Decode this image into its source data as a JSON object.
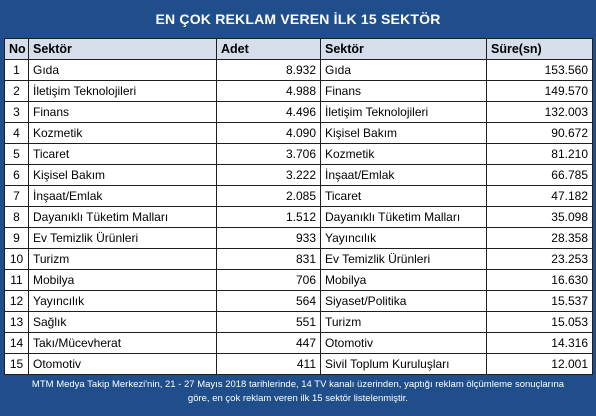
{
  "title": "EN ÇOK REKLAM VEREN İLK 15 SEKTÖR",
  "headers": {
    "no": "No",
    "sector_left": "Sektör",
    "adet": "Adet",
    "sector_right": "Sektör",
    "sure": "Süre(sn)"
  },
  "rows": [
    {
      "no": "1",
      "sector_a": "Gıda",
      "adet": "8.932",
      "sector_b": "Gıda",
      "sure": "153.560"
    },
    {
      "no": "2",
      "sector_a": "İletişim Teknolojileri",
      "adet": "4.988",
      "sector_b": "Finans",
      "sure": "149.570"
    },
    {
      "no": "3",
      "sector_a": "Finans",
      "adet": "4.496",
      "sector_b": "İletişim Teknolojileri",
      "sure": "132.003"
    },
    {
      "no": "4",
      "sector_a": "Kozmetik",
      "adet": "4.090",
      "sector_b": "Kişisel Bakım",
      "sure": "90.672"
    },
    {
      "no": "5",
      "sector_a": "Ticaret",
      "adet": "3.706",
      "sector_b": "Kozmetik",
      "sure": "81.210"
    },
    {
      "no": "6",
      "sector_a": "Kişisel Bakım",
      "adet": "3.222",
      "sector_b": "İnşaat/Emlak",
      "sure": "66.785"
    },
    {
      "no": "7",
      "sector_a": "İnşaat/Emlak",
      "adet": "2.085",
      "sector_b": "Ticaret",
      "sure": "47.182"
    },
    {
      "no": "8",
      "sector_a": "Dayanıklı Tüketim Malları",
      "adet": "1.512",
      "sector_b": "Dayanıklı Tüketim Malları",
      "sure": "35.098"
    },
    {
      "no": "9",
      "sector_a": "Ev Temizlik Ürünleri",
      "adet": "933",
      "sector_b": "Yayıncılık",
      "sure": "28.358"
    },
    {
      "no": "10",
      "sector_a": "Turizm",
      "adet": "831",
      "sector_b": "Ev Temizlik Ürünleri",
      "sure": "23.253"
    },
    {
      "no": "11",
      "sector_a": "Mobilya",
      "adet": "706",
      "sector_b": "Mobilya",
      "sure": "16.630"
    },
    {
      "no": "12",
      "sector_a": "Yayıncılık",
      "adet": "564",
      "sector_b": "Siyaset/Politika",
      "sure": "15.537"
    },
    {
      "no": "13",
      "sector_a": "Sağlık",
      "adet": "551",
      "sector_b": "Turizm",
      "sure": "15.053"
    },
    {
      "no": "14",
      "sector_a": "Takı/Mücevherat",
      "adet": "447",
      "sector_b": "Otomotiv",
      "sure": "14.316"
    },
    {
      "no": "15",
      "sector_a": "Otomotiv",
      "adet": "411",
      "sector_b": "Sivil Toplum Kuruluşları",
      "sure": "12.001"
    }
  ],
  "footnote": {
    "line1": "MTM Medya Takip Merkezi'nin, 21 - 27 Mayıs 2018 tarihlerinde, 14 TV kanalı üzerinden,  yaptığı reklam ölçümleme sonuçlarına",
    "line2": "göre, en çok reklam veren ilk 15 sektör  listelenmiştir."
  },
  "colors": {
    "background": "#1f4e8a",
    "header_fill": "#d5deea",
    "cell_fill": "#ffffff"
  }
}
